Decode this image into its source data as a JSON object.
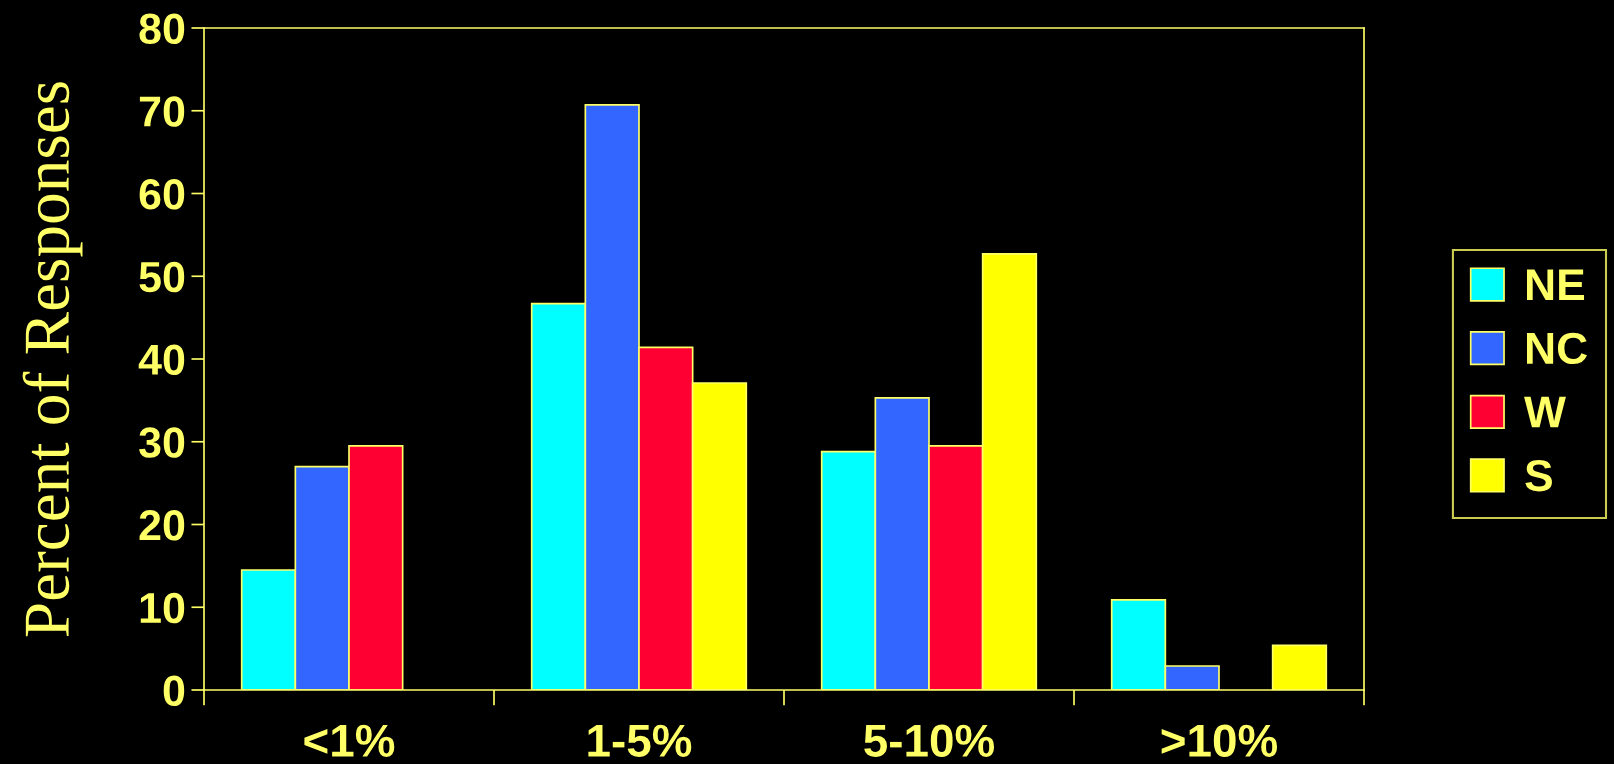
{
  "chart_data": {
    "type": "bar",
    "ylabel": "Percent of Responses",
    "categories": [
      "<1%",
      "1-5%",
      "5-10%",
      ">10%"
    ],
    "series": [
      {
        "name": "NE",
        "color": "#00ffff",
        "values": [
          14.5,
          46.7,
          28.8,
          10.9
        ]
      },
      {
        "name": "NC",
        "color": "#3366ff",
        "values": [
          27.0,
          70.7,
          35.3,
          2.9
        ]
      },
      {
        "name": "W",
        "color": "#ff0033",
        "values": [
          29.5,
          41.4,
          29.5,
          null
        ]
      },
      {
        "name": "S",
        "color": "#ffff00",
        "values": [
          null,
          37.1,
          52.7,
          5.4
        ]
      }
    ],
    "ylim": [
      0,
      80
    ],
    "yticks": [
      0,
      10,
      20,
      30,
      40,
      50,
      60,
      70,
      80
    ],
    "legend": "right"
  }
}
